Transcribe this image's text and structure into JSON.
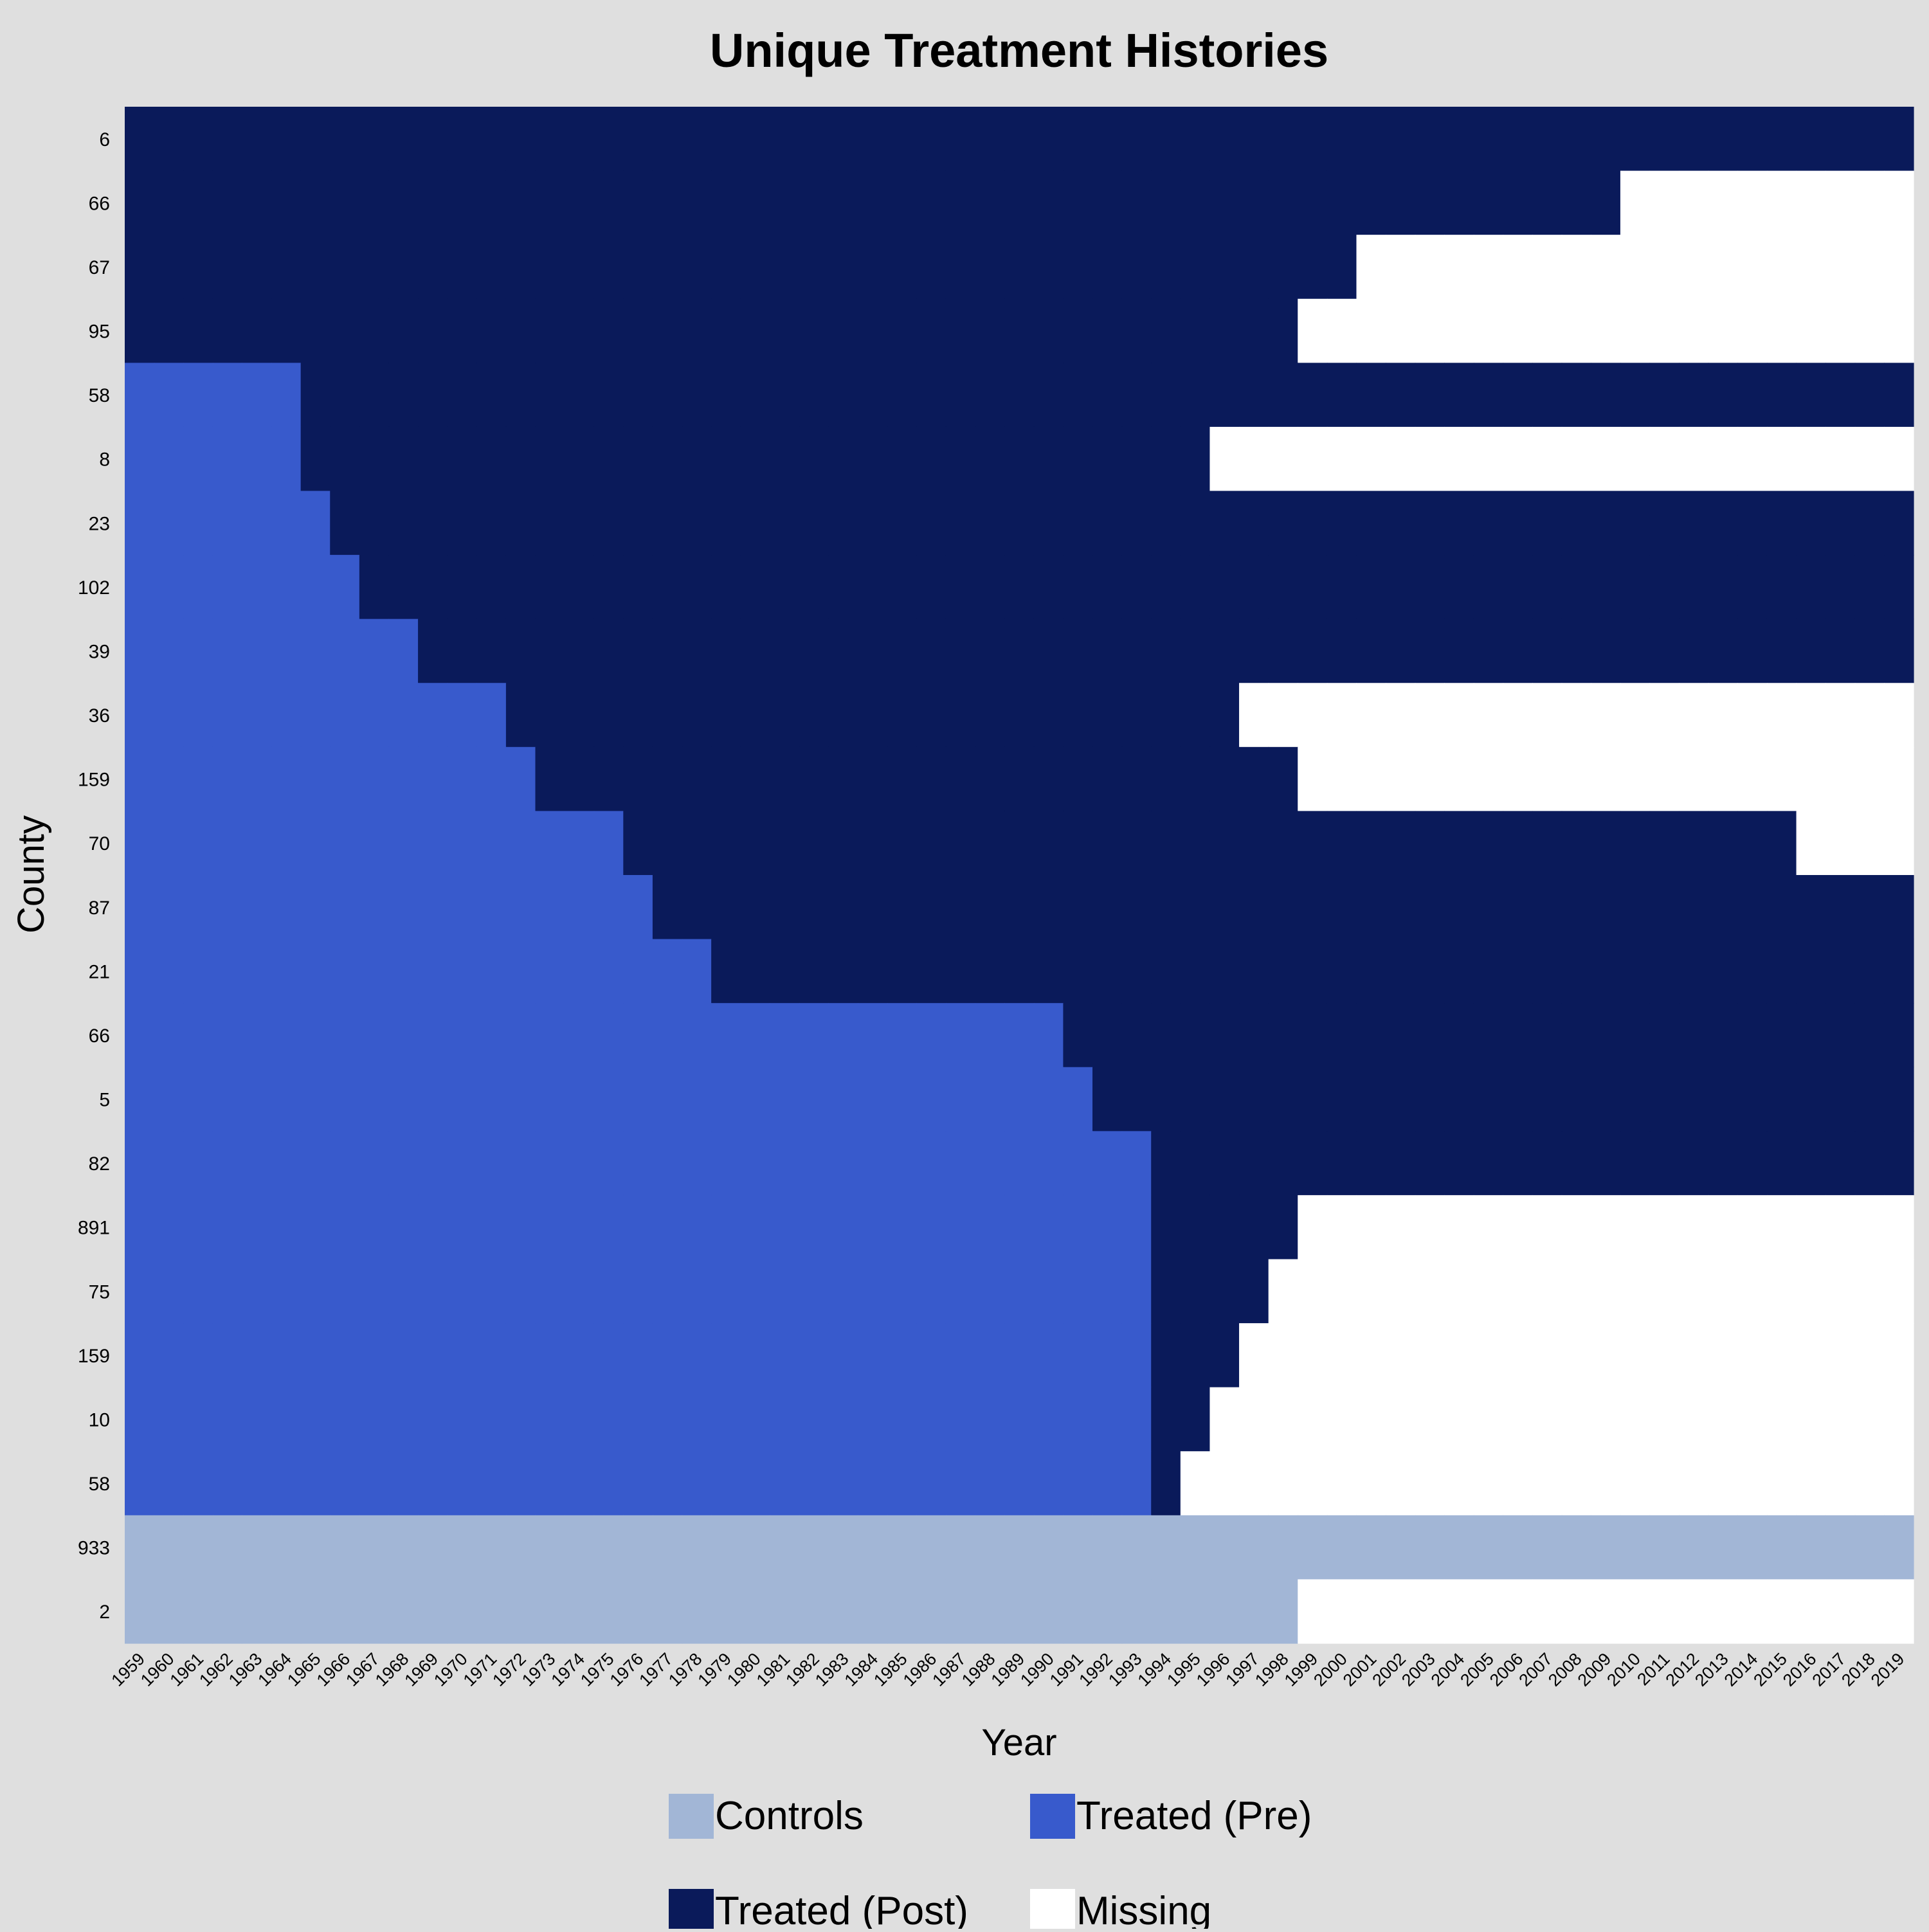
{
  "chart_data": {
    "type": "heatmap",
    "title": "Unique Treatment Histories",
    "xlabel": "Year",
    "ylabel": "County",
    "x_range": [
      1959,
      2019
    ],
    "categories_years": [
      1959,
      1960,
      1961,
      1962,
      1963,
      1964,
      1965,
      1966,
      1967,
      1968,
      1969,
      1970,
      1971,
      1972,
      1973,
      1974,
      1975,
      1976,
      1977,
      1978,
      1979,
      1980,
      1981,
      1982,
      1983,
      1984,
      1985,
      1986,
      1987,
      1988,
      1989,
      1990,
      1991,
      1992,
      1993,
      1994,
      1995,
      1996,
      1997,
      1998,
      1999,
      2000,
      2001,
      2002,
      2003,
      2004,
      2005,
      2006,
      2007,
      2008,
      2009,
      2010,
      2011,
      2012,
      2013,
      2014,
      2015,
      2016,
      2017,
      2018,
      2019
    ],
    "legend": {
      "placement": "bottom",
      "items": [
        {
          "label": "Controls",
          "color": "#a2b6d6"
        },
        {
          "label": "Treated (Pre)",
          "color": "#385acc"
        },
        {
          "label": "Treated (Post)",
          "color": "#0a1a5a"
        },
        {
          "label": "Missing",
          "color": "#ffffff"
        }
      ]
    },
    "colors": {
      "controls": "#a2b6d6",
      "pre": "#385acc",
      "post": "#0a1a5a",
      "missing": "#ffffff"
    },
    "rows": [
      {
        "label": "6",
        "pre_end": null,
        "last": 2019
      },
      {
        "label": "66",
        "pre_end": null,
        "last": 2009
      },
      {
        "label": "67",
        "pre_end": null,
        "last": 2000
      },
      {
        "label": "95",
        "pre_end": null,
        "last": 1998
      },
      {
        "label": "58",
        "pre_end": 1964,
        "last": 2019
      },
      {
        "label": "8",
        "pre_end": 1964,
        "last": 1995
      },
      {
        "label": "23",
        "pre_end": 1965,
        "last": 2019
      },
      {
        "label": "102",
        "pre_end": 1966,
        "last": 2019
      },
      {
        "label": "39",
        "pre_end": 1968,
        "last": 2019
      },
      {
        "label": "36",
        "pre_end": 1971,
        "last": 1996
      },
      {
        "label": "159",
        "pre_end": 1972,
        "last": 1998
      },
      {
        "label": "70",
        "pre_end": 1975,
        "last": 2015
      },
      {
        "label": "87",
        "pre_end": 1976,
        "last": 2019
      },
      {
        "label": "21",
        "pre_end": 1978,
        "last": 2019
      },
      {
        "label": "66",
        "pre_end": 1990,
        "last": 2019
      },
      {
        "label": "5",
        "pre_end": 1991,
        "last": 2019
      },
      {
        "label": "82",
        "pre_end": 1993,
        "last": 2019
      },
      {
        "label": "891",
        "pre_end": 1993,
        "last": 1998
      },
      {
        "label": "75",
        "pre_end": 1993,
        "last": 1997
      },
      {
        "label": "159",
        "pre_end": 1993,
        "last": 1996
      },
      {
        "label": "10",
        "pre_end": 1993,
        "last": 1995
      },
      {
        "label": "58",
        "pre_end": 1993,
        "last": 1994
      },
      {
        "label": "933",
        "control": true,
        "last": 2019
      },
      {
        "label": "2",
        "control": true,
        "last": 1998
      }
    ]
  }
}
